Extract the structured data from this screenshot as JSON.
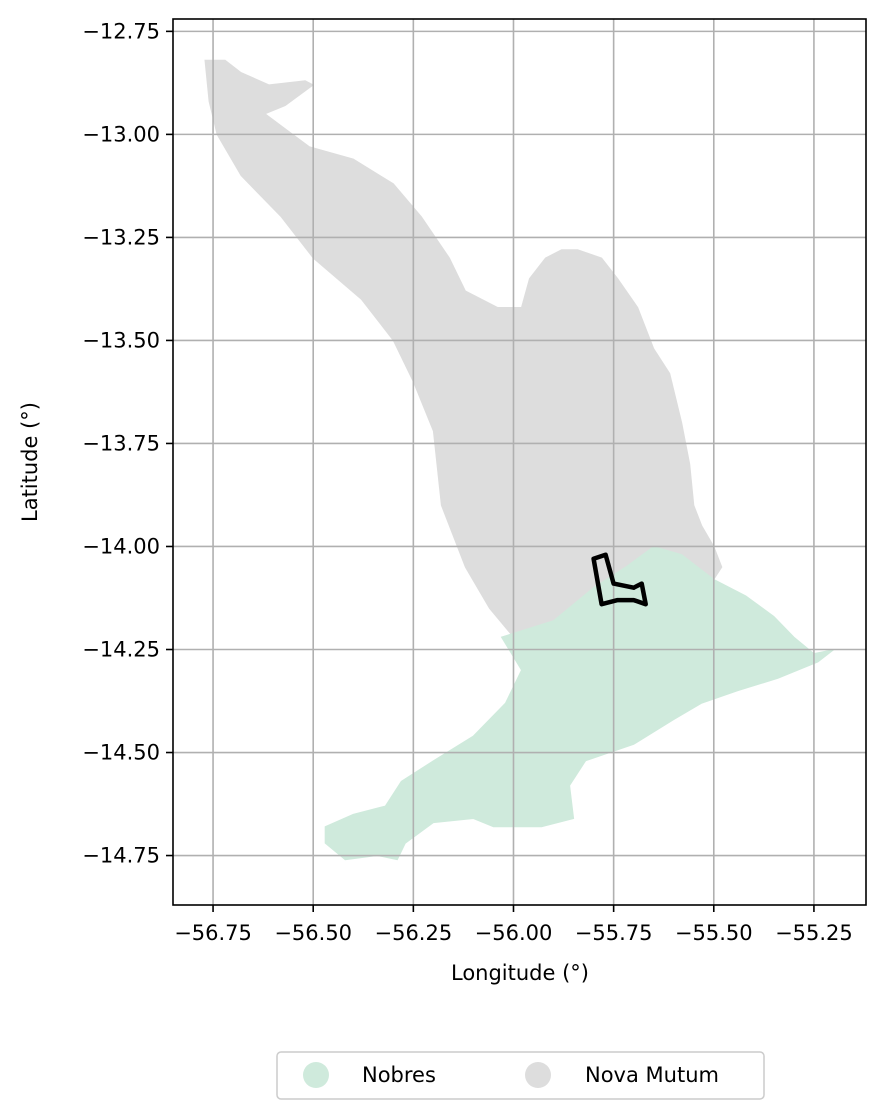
{
  "chart_data": {
    "type": "map",
    "xlabel": "Longitude (°)",
    "ylabel": "Latitude (°)",
    "xlim": [
      -56.85,
      -55.12
    ],
    "ylim": [
      -14.87,
      -12.72
    ],
    "grid": true,
    "legend_placement": "bottom-center",
    "x_ticks": [
      -56.75,
      -56.5,
      -56.25,
      -56.0,
      -55.75,
      -55.5,
      -55.25
    ],
    "x_tick_labels": [
      "−56.75",
      "−56.50",
      "−56.25",
      "−56.00",
      "−55.75",
      "−55.50",
      "−55.25"
    ],
    "y_ticks": [
      -12.75,
      -13.0,
      -13.25,
      -13.5,
      -13.75,
      -14.0,
      -14.25,
      -14.5,
      -14.75
    ],
    "y_tick_labels": [
      "−12.75",
      "−13.00",
      "−13.25",
      "−13.50",
      "−13.75",
      "−14.00",
      "−14.25",
      "−14.50",
      "−14.75"
    ],
    "regions": [
      {
        "name": "Nova Mutum",
        "color": "#dddddd",
        "outline": [
          [
            -56.77,
            -12.82
          ],
          [
            -56.72,
            -12.82
          ],
          [
            -56.68,
            -12.85
          ],
          [
            -56.61,
            -12.88
          ],
          [
            -56.52,
            -12.87
          ],
          [
            -56.5,
            -12.88
          ],
          [
            -56.57,
            -12.93
          ],
          [
            -56.62,
            -12.95
          ],
          [
            -56.51,
            -13.03
          ],
          [
            -56.4,
            -13.06
          ],
          [
            -56.3,
            -13.12
          ],
          [
            -56.23,
            -13.2
          ],
          [
            -56.16,
            -13.3
          ],
          [
            -56.12,
            -13.38
          ],
          [
            -56.04,
            -13.42
          ],
          [
            -55.98,
            -13.42
          ],
          [
            -55.96,
            -13.35
          ],
          [
            -55.92,
            -13.3
          ],
          [
            -55.88,
            -13.28
          ],
          [
            -55.84,
            -13.28
          ],
          [
            -55.78,
            -13.3
          ],
          [
            -55.74,
            -13.35
          ],
          [
            -55.69,
            -13.42
          ],
          [
            -55.65,
            -13.52
          ],
          [
            -55.61,
            -13.58
          ],
          [
            -55.58,
            -13.7
          ],
          [
            -55.56,
            -13.8
          ],
          [
            -55.55,
            -13.9
          ],
          [
            -55.53,
            -13.95
          ],
          [
            -55.5,
            -14.0
          ],
          [
            -55.48,
            -14.05
          ],
          [
            -55.5,
            -14.08
          ],
          [
            -55.58,
            -14.02
          ],
          [
            -55.65,
            -14.0
          ],
          [
            -55.72,
            -14.05
          ],
          [
            -55.8,
            -14.1
          ],
          [
            -55.9,
            -14.18
          ],
          [
            -56.0,
            -14.22
          ],
          [
            -56.06,
            -14.15
          ],
          [
            -56.12,
            -14.05
          ],
          [
            -56.18,
            -13.9
          ],
          [
            -56.2,
            -13.72
          ],
          [
            -56.25,
            -13.6
          ],
          [
            -56.3,
            -13.5
          ],
          [
            -56.38,
            -13.4
          ],
          [
            -56.5,
            -13.3
          ],
          [
            -56.58,
            -13.2
          ],
          [
            -56.68,
            -13.1
          ],
          [
            -56.74,
            -13.0
          ],
          [
            -56.76,
            -12.92
          ]
        ]
      },
      {
        "name": "Nobres",
        "color": "#cfeadc",
        "outline": [
          [
            -56.03,
            -14.22
          ],
          [
            -55.9,
            -14.18
          ],
          [
            -55.8,
            -14.1
          ],
          [
            -55.72,
            -14.05
          ],
          [
            -55.65,
            -14.0
          ],
          [
            -55.58,
            -14.02
          ],
          [
            -55.5,
            -14.08
          ],
          [
            -55.42,
            -14.12
          ],
          [
            -55.35,
            -14.17
          ],
          [
            -55.3,
            -14.22
          ],
          [
            -55.25,
            -14.26
          ],
          [
            -55.2,
            -14.25
          ],
          [
            -55.24,
            -14.28
          ],
          [
            -55.34,
            -14.32
          ],
          [
            -55.44,
            -14.35
          ],
          [
            -55.53,
            -14.38
          ],
          [
            -55.6,
            -14.42
          ],
          [
            -55.7,
            -14.48
          ],
          [
            -55.82,
            -14.52
          ],
          [
            -55.86,
            -14.58
          ],
          [
            -55.85,
            -14.66
          ],
          [
            -55.93,
            -14.68
          ],
          [
            -56.05,
            -14.68
          ],
          [
            -56.1,
            -14.66
          ],
          [
            -56.2,
            -14.67
          ],
          [
            -56.27,
            -14.72
          ],
          [
            -56.29,
            -14.76
          ],
          [
            -56.34,
            -14.75
          ],
          [
            -56.42,
            -14.76
          ],
          [
            -56.47,
            -14.72
          ],
          [
            -56.47,
            -14.68
          ],
          [
            -56.4,
            -14.65
          ],
          [
            -56.32,
            -14.63
          ],
          [
            -56.28,
            -14.57
          ],
          [
            -56.2,
            -14.52
          ],
          [
            -56.1,
            -14.46
          ],
          [
            -56.02,
            -14.38
          ],
          [
            -55.98,
            -14.3
          ]
        ]
      }
    ],
    "study_area": {
      "outline": [
        [
          -55.8,
          -14.03
        ],
        [
          -55.77,
          -14.02
        ],
        [
          -55.75,
          -14.09
        ],
        [
          -55.7,
          -14.1
        ],
        [
          -55.68,
          -14.09
        ],
        [
          -55.67,
          -14.14
        ],
        [
          -55.7,
          -14.13
        ],
        [
          -55.74,
          -14.13
        ],
        [
          -55.78,
          -14.14
        ]
      ]
    },
    "legend": [
      {
        "label": "Nobres",
        "color": "#cfeadc"
      },
      {
        "label": "Nova Mutum",
        "color": "#dddddd"
      }
    ]
  }
}
